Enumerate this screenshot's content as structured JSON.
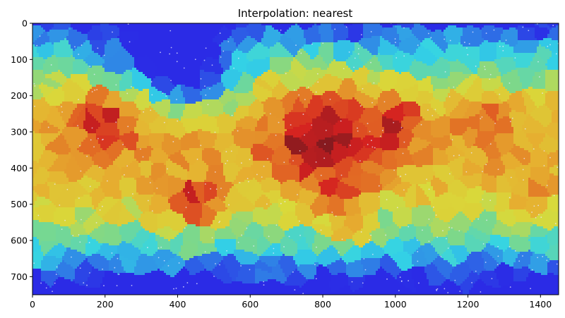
{
  "chart_data": {
    "type": "heatmap",
    "title": "Interpolation: nearest",
    "xlabel": "",
    "ylabel": "",
    "xlim": [
      0,
      1450
    ],
    "ylim": [
      750,
      0
    ],
    "y_axis_inverted": true,
    "grid": false,
    "xticks": [
      0,
      200,
      400,
      600,
      800,
      1000,
      1200,
      1400
    ],
    "yticks": [
      0,
      100,
      200,
      300,
      400,
      500,
      600,
      700
    ],
    "colormap": "jet",
    "colormap_stops": [
      "#2b2be6",
      "#2f7fe6",
      "#33d4e6",
      "#7bd88c",
      "#d9d93a",
      "#e6b030",
      "#e26a24",
      "#d42020",
      "#861a1f"
    ],
    "interpolation": "nearest",
    "description_values": "Voronoi-style nearest-neighbour cells; cell value in [0,1] mapped through jet colormap",
    "regions": [
      {
        "x": 200,
        "y": 270,
        "r": 110,
        "v": 0.9
      },
      {
        "x": 440,
        "y": 490,
        "r": 95,
        "v": 0.86
      },
      {
        "x": 800,
        "y": 320,
        "r": 160,
        "v": 1.0
      },
      {
        "x": 1000,
        "y": 280,
        "r": 90,
        "v": 0.9
      },
      {
        "x": 860,
        "y": 450,
        "r": 90,
        "v": 0.82
      },
      {
        "x": 1250,
        "y": 290,
        "r": 90,
        "v": 0.78
      },
      {
        "x": 1390,
        "y": 480,
        "r": 60,
        "v": 0.75
      },
      {
        "x": 870,
        "y": 560,
        "r": 60,
        "v": 0.7
      },
      {
        "x": 320,
        "y": 110,
        "r": 140,
        "v": -0.35
      },
      {
        "x": 460,
        "y": 140,
        "r": 120,
        "v": -0.4
      }
    ]
  }
}
